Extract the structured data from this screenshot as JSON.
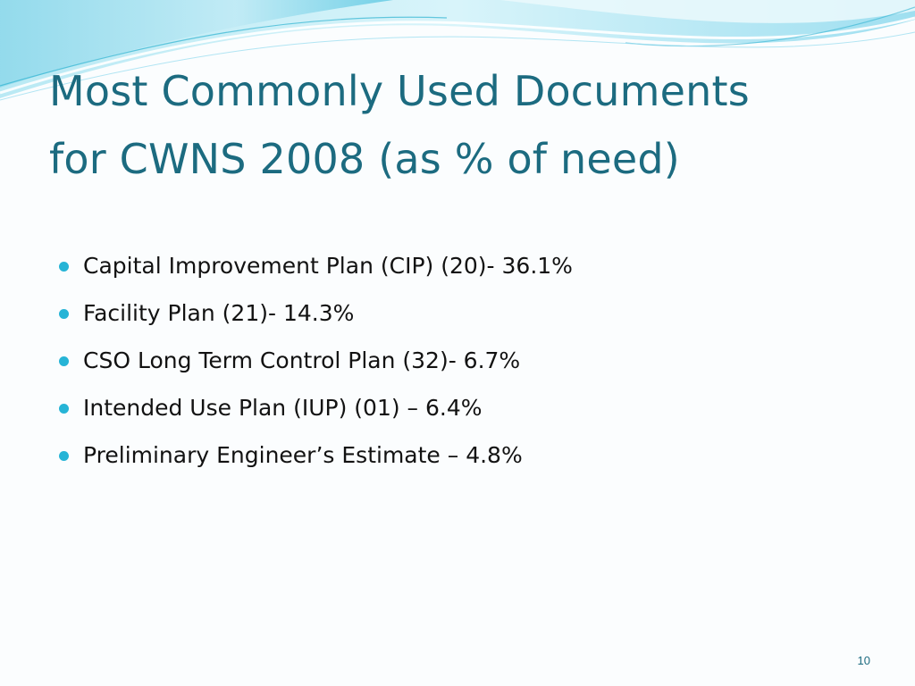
{
  "slide": {
    "title_line1": "Most Commonly Used Documents",
    "title_line2": "for CWNS 2008 (as % of need)",
    "bullets": [
      "Capital Improvement Plan (CIP) (20)- 36.1%",
      "Facility Plan (21)- 14.3%",
      "CSO Long Term Control Plan (32)- 6.7%",
      "Intended Use Plan (IUP) (01) – 6.4%",
      "Preliminary Engineer’s Estimate – 4.8%"
    ],
    "page_number": "10"
  },
  "colors": {
    "title": "#1c6b80",
    "bullet": "#26b4d6",
    "text": "#121212",
    "wave_light": "#c9eef6",
    "wave_mid": "#7fd4e8",
    "wave_accent": "#2fb3d2"
  }
}
